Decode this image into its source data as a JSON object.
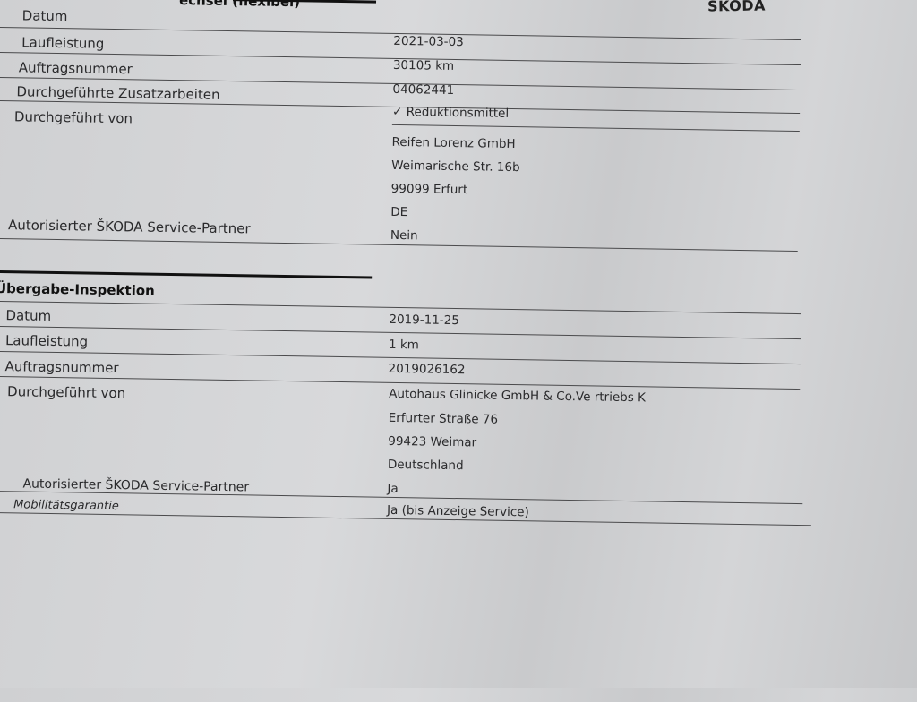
{
  "brand": "ŠKODA",
  "section1": {
    "title": "echsel (flexibel)",
    "rows": [
      {
        "label": "Datum",
        "value": ""
      },
      {
        "label": "Laufleistung",
        "value": "2021-03-03"
      },
      {
        "label": "Auftragsnummer",
        "value": "30105 km"
      },
      {
        "label": "Durchgeführte Zusatzarbeiten",
        "value": "04062441"
      },
      {
        "label": "Durchgeführt von",
        "value": "Reduktionsmittel"
      }
    ],
    "address": [
      "Reifen Lorenz GmbH",
      "Weimarische Str. 16b",
      "99099 Erfurt",
      "DE"
    ],
    "partner_label": "Autorisierter ŠKODA Service-Partner",
    "partner_value": "Nein",
    "check_icon": "check-icon"
  },
  "section2": {
    "title": "Übergabe-Inspektion",
    "rows": [
      {
        "label": "Datum",
        "value": "2019-11-25"
      },
      {
        "label": "Laufleistung",
        "value": "1 km"
      },
      {
        "label": "Auftragsnummer",
        "value": "2019026162"
      },
      {
        "label": "Durchgeführt von",
        "value": "Autohaus Glinicke GmbH & Co.Ve rtriebs K"
      }
    ],
    "address": [
      "Erfurter Straße 76",
      "99423 Weimar",
      "Deutschland"
    ],
    "partner_label": "Autorisierter ŠKODA Service-Partner",
    "partner_value": "Ja",
    "mobility_label": "Mobilitätsgarantie",
    "mobility_value": "Ja (bis Anzeige Service)"
  }
}
